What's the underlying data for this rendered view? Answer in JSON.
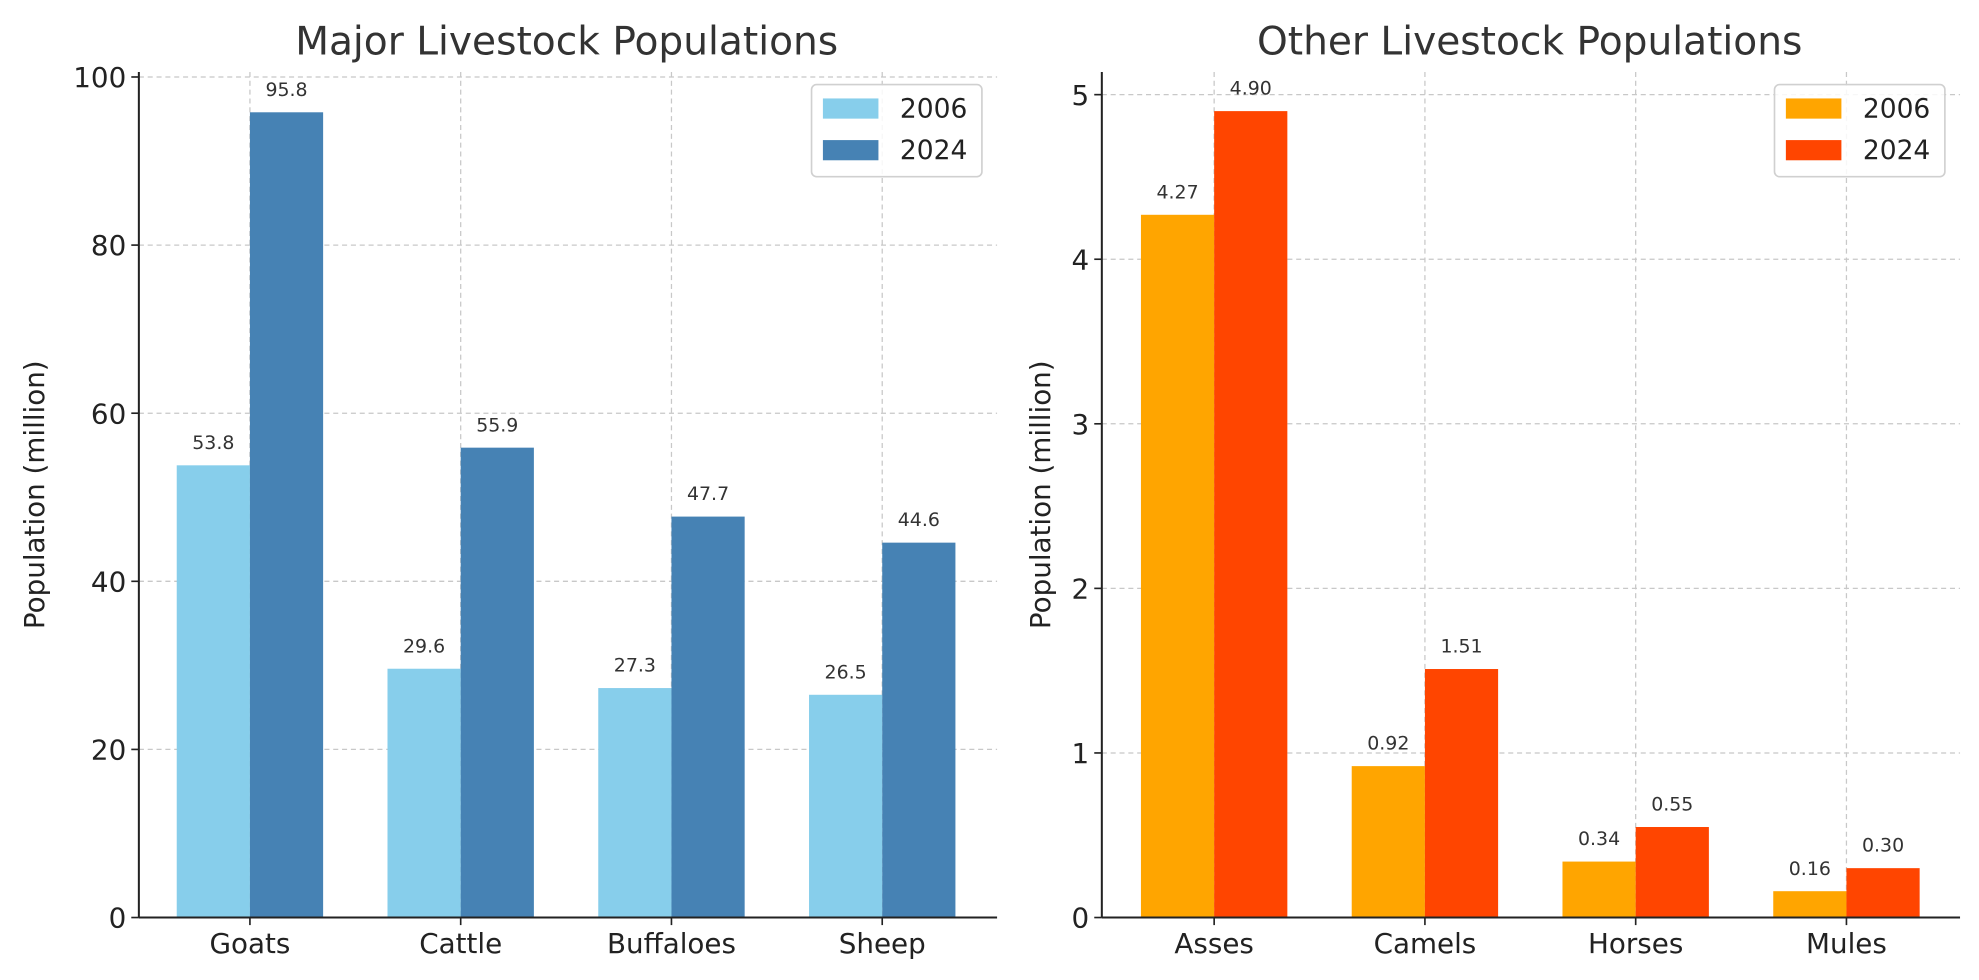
{
  "chart_data": [
    {
      "type": "bar",
      "title": "Major Livestock Populations",
      "xlabel": "",
      "ylabel": "Population (million)",
      "ylim": [
        0,
        100
      ],
      "yticks": [
        0,
        20,
        40,
        60,
        80,
        100
      ],
      "categories": [
        "Goats",
        "Cattle",
        "Buffaloes",
        "Sheep"
      ],
      "series": [
        {
          "name": "2006",
          "color": "#87CEEB",
          "values": [
            53.8,
            29.6,
            27.3,
            26.5
          ],
          "labels": [
            "53.8",
            "29.6",
            "27.3",
            "26.5"
          ]
        },
        {
          "name": "2024",
          "color": "#4682B4",
          "values": [
            95.8,
            55.9,
            47.7,
            44.6
          ],
          "labels": [
            "95.8",
            "55.9",
            "47.7",
            "44.6"
          ]
        }
      ],
      "grid": true,
      "legend": "top-right"
    },
    {
      "type": "bar",
      "title": "Other Livestock Populations",
      "xlabel": "",
      "ylabel": "Population (million)",
      "ylim": [
        0,
        5.15
      ],
      "yticks": [
        0,
        1,
        2,
        3,
        4,
        5
      ],
      "categories": [
        "Asses",
        "Camels",
        "Horses",
        "Mules"
      ],
      "series": [
        {
          "name": "2006",
          "color": "#FFA500",
          "values": [
            4.27,
            0.92,
            0.34,
            0.16
          ],
          "labels": [
            "4.27",
            "0.92",
            "0.34",
            "0.16"
          ]
        },
        {
          "name": "2024",
          "color": "#FF4500",
          "values": [
            4.9,
            1.51,
            0.55,
            0.3
          ],
          "labels": [
            "4.90",
            "1.51",
            "0.55",
            "0.30"
          ]
        }
      ],
      "grid": true,
      "legend": "top-right"
    }
  ]
}
